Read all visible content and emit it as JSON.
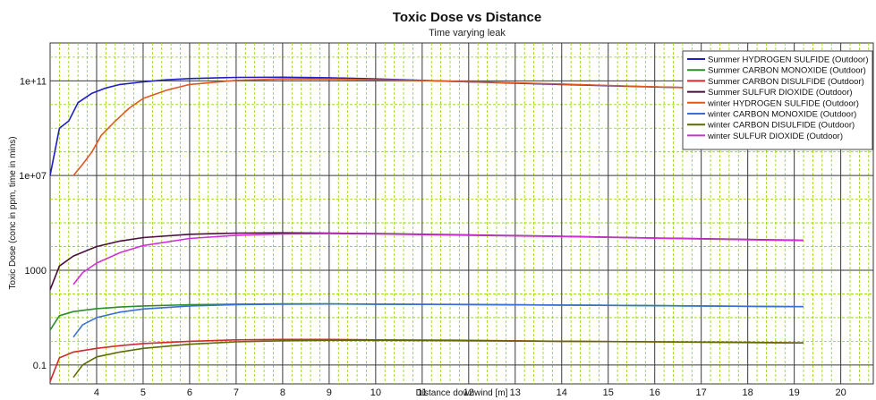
{
  "chart_data": {
    "type": "line",
    "title": "Toxic Dose vs Distance",
    "subtitle": "Time varying leak",
    "xlabel": "Distance downwind [m]",
    "ylabel": "Toxic Dose (conc in ppm, time in mins)",
    "xlim": [
      3.0,
      20.7
    ],
    "ylim_log10": [
      -1.8,
      12.6
    ],
    "yscale": "log",
    "grid": true,
    "legend_placement": "top-right",
    "x_ticks": [
      4,
      5,
      6,
      7,
      8,
      9,
      10,
      11,
      12,
      13,
      14,
      15,
      16,
      17,
      18,
      19,
      20
    ],
    "y_ticks": [
      {
        "value": 100000000000.0,
        "label": "1e+11"
      },
      {
        "value": 10000000.0,
        "label": "1e+07"
      },
      {
        "value": 1000,
        "label": "1000"
      },
      {
        "value": 0.1,
        "label": "0.1"
      }
    ],
    "colors": {
      "grid_major": "#3a3a3a",
      "grid_minor": "#8fd400",
      "plot_bg": "#ffffff"
    },
    "series": [
      {
        "name": "Summer HYDROGEN SULFIDE (Outdoor)",
        "color": "#1f1fbf",
        "x": [
          3.0,
          3.2,
          3.4,
          3.6,
          3.9,
          4.2,
          4.5,
          5.0,
          5.5,
          6.0,
          7.0,
          8.0,
          9.0,
          10.0,
          11.0,
          12.0,
          13.0,
          14.0,
          15.0,
          16.0,
          17.0,
          18.0
        ],
        "y": [
          10000000.0,
          1000000000.0,
          2000000000.0,
          12000000000.0,
          30000000000.0,
          50000000000.0,
          70000000000.0,
          90000000000.0,
          110000000000.0,
          125000000000.0,
          140000000000.0,
          142000000000.0,
          135000000000.0,
          120000000000.0,
          105000000000.0,
          90000000000.0,
          80000000000.0,
          70000000000.0,
          62000000000.0,
          55000000000.0,
          50000000000.0,
          46000000000.0
        ]
      },
      {
        "name": "Summer CARBON MONOXIDE (Outdoor)",
        "color": "#2e8b2e",
        "x": [
          3.0,
          3.2,
          3.5,
          4.0,
          4.5,
          5.0,
          6.0,
          7.0,
          8.0,
          9.0,
          10.0,
          12.0,
          14.0,
          16.0,
          18.0,
          19.2
        ],
        "y": [
          3,
          12,
          18,
          24,
          28,
          31,
          35,
          37,
          38,
          38,
          37,
          36,
          34,
          32,
          30,
          29
        ]
      },
      {
        "name": "Summer CARBON DISULFIDE (Outdoor)",
        "color": "#d42a2a",
        "x": [
          3.0,
          3.2,
          3.5,
          4.0,
          4.5,
          5.0,
          6.0,
          7.0,
          8.0,
          9.0,
          10.0,
          12.0,
          14.0,
          16.0,
          18.0,
          19.2
        ],
        "y": [
          0.02,
          0.2,
          0.35,
          0.5,
          0.65,
          0.8,
          1.0,
          1.15,
          1.2,
          1.2,
          1.15,
          1.1,
          1.0,
          0.95,
          0.9,
          0.85
        ]
      },
      {
        "name": "Summer SULFUR DIOXIDE (Outdoor)",
        "color": "#4b0f3f",
        "x": [
          3.0,
          3.2,
          3.5,
          4.0,
          4.5,
          5.0,
          6.0,
          7.0,
          8.0,
          9.0,
          10.0,
          12.0,
          14.0,
          16.0,
          18.0,
          19.2
        ],
        "y": [
          150,
          1500,
          4000,
          10000,
          17000,
          24000,
          33000,
          37000,
          38000,
          37000,
          35000,
          31000,
          27000,
          23000,
          20000,
          18500
        ]
      },
      {
        "name": "winter HYDROGEN SULFIDE (Outdoor)",
        "color": "#e0571f",
        "x": [
          3.5,
          3.7,
          3.9,
          4.1,
          4.4,
          4.7,
          5.0,
          5.5,
          6.0,
          7.0,
          8.0,
          9.0,
          10.0,
          11.0,
          12.0,
          13.0,
          14.0,
          15.0,
          16.0,
          17.0,
          18.0
        ],
        "y": [
          10000000.0,
          30000000.0,
          100000000.0,
          500000000.0,
          2000000000.0,
          7000000000.0,
          18000000000.0,
          40000000000.0,
          70000000000.0,
          105000000000.0,
          120000000000.0,
          118000000000.0,
          110000000000.0,
          102000000000.0,
          92000000000.0,
          82000000000.0,
          73000000000.0,
          64000000000.0,
          56000000000.0,
          50000000000.0,
          45000000000.0
        ]
      },
      {
        "name": "winter CARBON MONOXIDE (Outdoor)",
        "color": "#3a6fd6",
        "x": [
          3.5,
          3.7,
          4.0,
          4.5,
          5.0,
          6.0,
          7.0,
          8.0,
          9.0,
          10.0,
          12.0,
          14.0,
          16.0,
          18.0,
          19.2
        ],
        "y": [
          1.5,
          5,
          10,
          17,
          23,
          31,
          35,
          37,
          37.5,
          37,
          35.5,
          34,
          32,
          30,
          29
        ]
      },
      {
        "name": "winter CARBON DISULFIDE (Outdoor)",
        "color": "#5f6b00",
        "x": [
          3.5,
          3.7,
          4.0,
          4.5,
          5.0,
          6.0,
          7.0,
          8.0,
          9.0,
          10.0,
          12.0,
          14.0,
          16.0,
          18.0,
          19.2
        ],
        "y": [
          0.03,
          0.1,
          0.22,
          0.35,
          0.5,
          0.75,
          0.95,
          1.05,
          1.1,
          1.1,
          1.05,
          1.0,
          0.95,
          0.88,
          0.85
        ]
      },
      {
        "name": "winter SULFUR DIOXIDE (Outdoor)",
        "color": "#d12fd6",
        "x": [
          3.5,
          3.7,
          4.0,
          4.5,
          5.0,
          6.0,
          7.0,
          8.0,
          9.0,
          10.0,
          12.0,
          14.0,
          16.0,
          18.0,
          19.2
        ],
        "y": [
          250,
          800,
          2000,
          5500,
          11000,
          22000,
          30000,
          34000,
          35000,
          34000,
          30000,
          26500,
          22500,
          19500,
          18000
        ]
      }
    ]
  }
}
